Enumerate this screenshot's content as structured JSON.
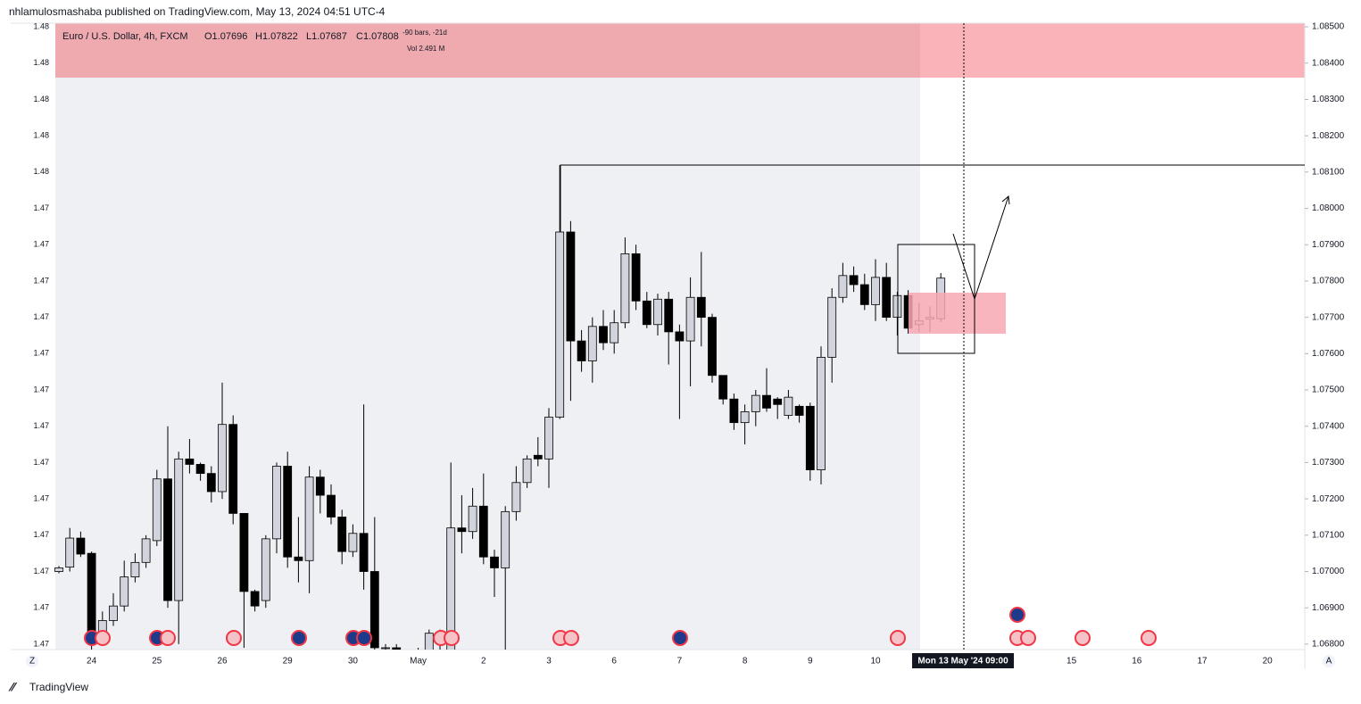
{
  "header": {
    "publisher": "nhlamulosmashaba published on TradingView.com, May 13, 2024 04:51 UTC-4"
  },
  "footer": {
    "brand": "TradingView"
  },
  "chart_data": {
    "type": "candlestick",
    "title": "Euro / U.S. Dollar, 4h, FXCM",
    "ohlc_texts": [
      "O1.07696",
      "H1.07822",
      "L1.07687",
      "C1.07808"
    ],
    "bars_note": "-90 bars, -21d",
    "volume_text": "Vol 2.491 M",
    "crosshair_label": "Mon 13 May '24   09:00",
    "corner_labels": [
      "Z",
      "A"
    ],
    "up_color": "#d1d4dc",
    "down_color": "#000000",
    "categories": [
      null,
      null,
      null,
      "24",
      null,
      null,
      null,
      null,
      null,
      "25",
      null,
      null,
      null,
      null,
      null,
      "26",
      null,
      null,
      null,
      null,
      null,
      "29",
      null,
      null,
      null,
      null,
      null,
      "30",
      null,
      null,
      null,
      null,
      null,
      "May",
      null,
      null,
      null,
      null,
      null,
      "2",
      null,
      null,
      null,
      null,
      null,
      "3",
      null,
      null,
      null,
      null,
      null,
      "6",
      null,
      null,
      null,
      null,
      null,
      "7",
      null,
      null,
      null,
      null,
      null,
      "8",
      null,
      null,
      null,
      null,
      null,
      "9",
      null,
      null,
      null,
      null,
      null,
      "10",
      null,
      null,
      null,
      null,
      null,
      null,
      null,
      null,
      null,
      null,
      null,
      null,
      null,
      null,
      null,
      null,
      null,
      "15",
      null,
      null,
      null,
      null,
      null,
      "16",
      null,
      null,
      null,
      null,
      null,
      "17",
      null,
      null,
      null,
      null,
      null,
      "20"
    ],
    "open": [
      1.07,
      1.07012,
      1.07092,
      1.0705,
      1.0683,
      1.06865,
      1.06905,
      1.06985,
      1.07025,
      1.07085,
      1.07255,
      1.0692,
      1.0731,
      1.07295,
      1.0727,
      1.0722,
      1.07405,
      1.0716,
      1.06945,
      1.0692,
      1.0709,
      1.0729,
      1.0704,
      1.0703,
      1.0726,
      1.0721,
      1.0715,
      1.07055,
      1.07105,
      1.07,
      1.0679,
      1.0679,
      1.0674,
      1.0672,
      1.0676,
      1.0683,
      1.0678,
      1.0712,
      1.0711,
      1.0718,
      1.0704,
      1.0701,
      1.07165,
      1.07245,
      1.0732,
      1.0731,
      1.07425,
      1.07935,
      1.07635,
      1.0758,
      1.07675,
      1.0763,
      1.07685,
      1.07875,
      1.07745,
      1.0768,
      1.0775,
      1.0766,
      1.07635,
      1.07755,
      1.077,
      1.0754,
      1.07475,
      1.0741,
      1.0744,
      1.07485,
      1.07475,
      1.0743,
      1.07455,
      1.07455,
      1.0728,
      1.0759,
      1.07755,
      1.07815,
      1.0779,
      1.07735,
      1.0781,
      1.077,
      1.0776,
      1.0768,
      1.07695,
      1.07696,
      null,
      null,
      null,
      null,
      null,
      null,
      null,
      null,
      null,
      null,
      null,
      null,
      null,
      null,
      null,
      null,
      null,
      null,
      null,
      null,
      null,
      null,
      null,
      null,
      null,
      null,
      null,
      null,
      null,
      null
    ],
    "high": [
      1.07015,
      1.0712,
      1.0711,
      1.07055,
      1.0689,
      1.0694,
      1.0703,
      1.0705,
      1.071,
      1.0728,
      1.074,
      1.0733,
      1.07365,
      1.073,
      1.0729,
      1.0752,
      1.0743,
      1.0716,
      1.0695,
      1.071,
      1.073,
      1.0733,
      1.0715,
      1.0729,
      1.0728,
      1.0724,
      1.0717,
      1.0713,
      1.0746,
      1.0715,
      1.068,
      1.068,
      1.0676,
      1.0679,
      1.0684,
      1.0684,
      1.073,
      1.0721,
      1.0723,
      1.0727,
      1.0706,
      1.0718,
      1.0729,
      1.0732,
      1.0737,
      1.0745,
      1.0812,
      1.07965,
      1.07665,
      1.077,
      1.0772,
      1.0772,
      1.0792,
      1.079,
      1.0777,
      1.07765,
      1.0777,
      1.0768,
      1.0781,
      1.0788,
      1.0771,
      1.0754,
      1.0749,
      1.0746,
      1.075,
      1.0756,
      1.0748,
      1.075,
      1.0746,
      1.07465,
      1.0762,
      1.0778,
      1.0785,
      1.0784,
      1.0782,
      1.0786,
      1.0785,
      1.0777,
      1.07775,
      1.0774,
      1.0773,
      1.07822,
      null,
      null,
      null,
      null,
      null,
      null,
      null,
      null,
      null,
      null,
      null,
      null,
      null,
      null,
      null,
      null,
      null,
      null,
      null,
      null,
      null,
      null,
      null,
      null,
      null,
      null,
      null,
      null,
      null,
      null
    ],
    "low": [
      1.06995,
      1.07,
      1.0704,
      1.0678,
      1.068,
      1.0685,
      1.0689,
      1.0697,
      1.0701,
      1.0707,
      1.069,
      1.068,
      1.0727,
      1.0725,
      1.0719,
      1.072,
      1.0713,
      1.0679,
      1.0689,
      1.069,
      1.0705,
      1.0701,
      1.0697,
      1.0694,
      1.0716,
      1.0713,
      1.0702,
      1.0704,
      1.0695,
      1.0677,
      1.0678,
      1.067,
      1.0668,
      1.067,
      1.0674,
      1.0678,
      1.067,
      1.0705,
      1.0709,
      1.0702,
      1.0693,
      1.0675,
      1.0714,
      1.0723,
      1.0729,
      1.0723,
      1.0742,
      1.0747,
      1.0755,
      1.0752,
      1.0761,
      1.076,
      1.0767,
      1.0772,
      1.0767,
      1.0765,
      1.0757,
      1.0742,
      1.0751,
      1.0762,
      1.0752,
      1.0746,
      1.0739,
      1.0735,
      1.074,
      1.0744,
      1.0742,
      1.0742,
      1.0741,
      1.0725,
      1.0724,
      1.0752,
      1.0774,
      1.0777,
      1.0772,
      1.0769,
      1.0769,
      1.0765,
      1.07655,
      1.0766,
      1.0766,
      1.07687,
      null,
      null,
      null,
      null,
      null,
      null,
      null,
      null,
      null,
      null,
      null,
      null,
      null,
      null,
      null,
      null,
      null,
      null,
      null,
      null,
      null,
      null,
      null,
      null,
      null,
      null,
      null,
      null,
      null,
      null
    ],
    "close": [
      1.0701,
      1.07092,
      1.07048,
      1.0683,
      1.06865,
      1.06905,
      1.06985,
      1.07025,
      1.0709,
      1.07255,
      1.0692,
      1.0731,
      1.07295,
      1.0727,
      1.0722,
      1.07405,
      1.0716,
      1.06945,
      1.06905,
      1.0709,
      1.0729,
      1.0704,
      1.0703,
      1.0726,
      1.0721,
      1.0715,
      1.07055,
      1.07105,
      1.07,
      1.0679,
      1.0679,
      1.0674,
      1.0672,
      1.0676,
      1.0683,
      1.0681,
      1.0712,
      1.0711,
      1.0718,
      1.0704,
      1.0701,
      1.07165,
      1.07245,
      1.0731,
      1.0731,
      1.07425,
      1.07935,
      1.07635,
      1.0758,
      1.07675,
      1.0763,
      1.07685,
      1.07875,
      1.07745,
      1.0768,
      1.0775,
      1.0766,
      1.07635,
      1.07755,
      1.077,
      1.0754,
      1.07475,
      1.0741,
      1.0744,
      1.07485,
      1.0745,
      1.0746,
      1.0748,
      1.0743,
      1.0728,
      1.0759,
      1.07755,
      1.07815,
      1.0779,
      1.07735,
      1.0781,
      1.077,
      1.0776,
      1.0767,
      1.0769,
      1.077,
      1.07808,
      null,
      null,
      null,
      null,
      null,
      null,
      null,
      null,
      null,
      null,
      null,
      null,
      null,
      null,
      null,
      null,
      null,
      null,
      null,
      null,
      null,
      null,
      null,
      null,
      null,
      null,
      null,
      null,
      null,
      null
    ],
    "ylim": [
      1.06785,
      1.0851
    ],
    "yticks": [
      {
        "value": 1.085,
        "label": "1.08500"
      },
      {
        "value": 1.084,
        "label": "1.08400"
      },
      {
        "value": 1.083,
        "label": "1.08300"
      },
      {
        "value": 1.082,
        "label": "1.08200"
      },
      {
        "value": 1.081,
        "label": "1.08100"
      },
      {
        "value": 1.08,
        "label": "1.08000"
      },
      {
        "value": 1.079,
        "label": "1.07900"
      },
      {
        "value": 1.078,
        "label": "1.07800"
      },
      {
        "value": 1.077,
        "label": "1.07700"
      },
      {
        "value": 1.076,
        "label": "1.07600"
      },
      {
        "value": 1.075,
        "label": "1.07500"
      },
      {
        "value": 1.074,
        "label": "1.07400"
      },
      {
        "value": 1.073,
        "label": "1.07300"
      },
      {
        "value": 1.072,
        "label": "1.07200"
      },
      {
        "value": 1.071,
        "label": "1.07100"
      },
      {
        "value": 1.07,
        "label": "1.07000"
      },
      {
        "value": 1.069,
        "label": "1.06900"
      },
      {
        "value": 1.068,
        "label": "1.06800"
      }
    ],
    "left_axis_labels": [
      "1.48",
      "1.48",
      "1.48",
      "1.48",
      "1.48",
      "1.47",
      "1.47",
      "1.47",
      "1.47",
      "1.47",
      "1.47",
      "1.47",
      "1.47",
      "1.47",
      "1.47",
      "1.47",
      "1.47",
      "1.47"
    ]
  }
}
